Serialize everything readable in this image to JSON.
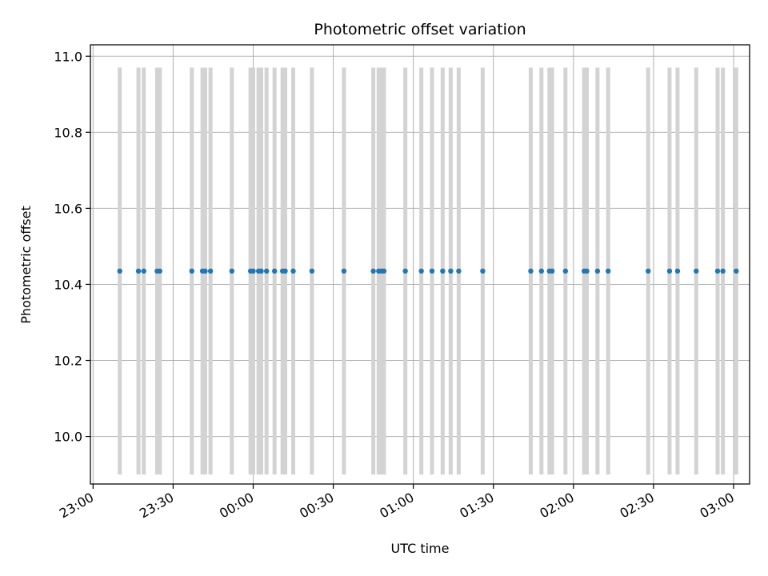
{
  "chart_data": {
    "type": "scatter",
    "title": "Photometric offset variation",
    "xlabel": "UTC time",
    "ylabel": "Photometric offset",
    "x_axis_kind": "time",
    "xlim": [
      "22:59",
      "03:06"
    ],
    "ylim": [
      9.875,
      11.03
    ],
    "grid": true,
    "x_ticks": [
      "23:00",
      "23:30",
      "00:00",
      "00:30",
      "01:00",
      "01:30",
      "02:00",
      "02:30",
      "03:00"
    ],
    "y_ticks": [
      "10.0",
      "10.2",
      "10.4",
      "10.6",
      "10.8",
      "11.0"
    ],
    "x_tick_values": [
      "23:00",
      "23:30",
      "00:00",
      "00:30",
      "01:00",
      "01:30",
      "02:00",
      "02:30",
      "03:00"
    ],
    "y_tick_values": [
      10.0,
      10.2,
      10.4,
      10.6,
      10.8,
      11.0
    ],
    "series": [
      {
        "color": "#1f77b4",
        "marker": "dot",
        "x": [
          "23:10",
          "23:17",
          "23:19",
          "23:24",
          "23:25",
          "23:37",
          "23:41",
          "23:42",
          "23:44",
          "23:52",
          "23:59",
          "24:00",
          "24:02",
          "24:03",
          "24:05",
          "24:08",
          "24:11",
          "24:12",
          "24:15",
          "24:22",
          "24:34",
          "24:45",
          "24:47",
          "24:48",
          "24:49",
          "24:57",
          "25:03",
          "25:07",
          "25:11",
          "25:14",
          "25:17",
          "25:26",
          "25:44",
          "25:48",
          "25:51",
          "25:52",
          "25:57",
          "26:04",
          "26:05",
          "26:09",
          "26:13",
          "26:28",
          "26:36",
          "26:39",
          "26:46",
          "26:54",
          "26:56",
          "27:01"
        ],
        "y": [
          10.435,
          10.435,
          10.435,
          10.435,
          10.435,
          10.435,
          10.435,
          10.435,
          10.435,
          10.435,
          10.435,
          10.435,
          10.435,
          10.435,
          10.435,
          10.435,
          10.435,
          10.435,
          10.435,
          10.435,
          10.435,
          10.435,
          10.435,
          10.435,
          10.435,
          10.435,
          10.435,
          10.435,
          10.435,
          10.435,
          10.435,
          10.435,
          10.435,
          10.435,
          10.435,
          10.435,
          10.435,
          10.435,
          10.435,
          10.435,
          10.435,
          10.435,
          10.435,
          10.435,
          10.435,
          10.435,
          10.435,
          10.435
        ],
        "y_low": 9.9,
        "y_high": 10.97,
        "errorbar_color": "#d3d3d3"
      }
    ]
  },
  "colors": {
    "marker": "#1f77b4",
    "errorbar": "#d3d3d3",
    "grid": "#b0b0b0",
    "axes": "#000000",
    "background": "#ffffff"
  }
}
